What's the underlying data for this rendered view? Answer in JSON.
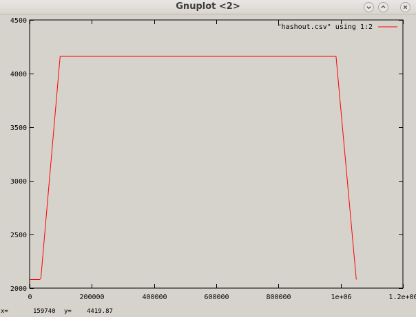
{
  "window": {
    "title": "Gnuplot <2>",
    "buttons": [
      "minimize-icon",
      "maximize-icon",
      "close-icon"
    ]
  },
  "chart_data": {
    "type": "line",
    "title": "",
    "xlabel": "",
    "ylabel": "",
    "xlim": [
      0,
      1200000
    ],
    "ylim": [
      2000,
      4500
    ],
    "x_tick_labels": [
      "0",
      "200000",
      "400000",
      "600000",
      "800000",
      "1e+06",
      "1.2e+06"
    ],
    "x_tick_values": [
      0,
      200000,
      400000,
      600000,
      800000,
      1000000,
      1200000
    ],
    "y_tick_labels": [
      "2000",
      "2500",
      "3000",
      "3500",
      "4000",
      "4500"
    ],
    "y_tick_values": [
      2000,
      2500,
      3000,
      3500,
      4000,
      4500
    ],
    "grid": false,
    "legend_position": "top-right",
    "series": [
      {
        "name": "\"hashout.csv\" using 1:2",
        "color": "#ff0000",
        "x": [
          0,
          32000,
          36000,
          98000,
          985000,
          1050000
        ],
        "y": [
          2080,
          2080,
          2090,
          4160,
          4160,
          2080
        ]
      }
    ]
  },
  "status": {
    "x_label": "x=",
    "x_value": "159740",
    "y_label": "y=",
    "y_value": "4419.87"
  }
}
